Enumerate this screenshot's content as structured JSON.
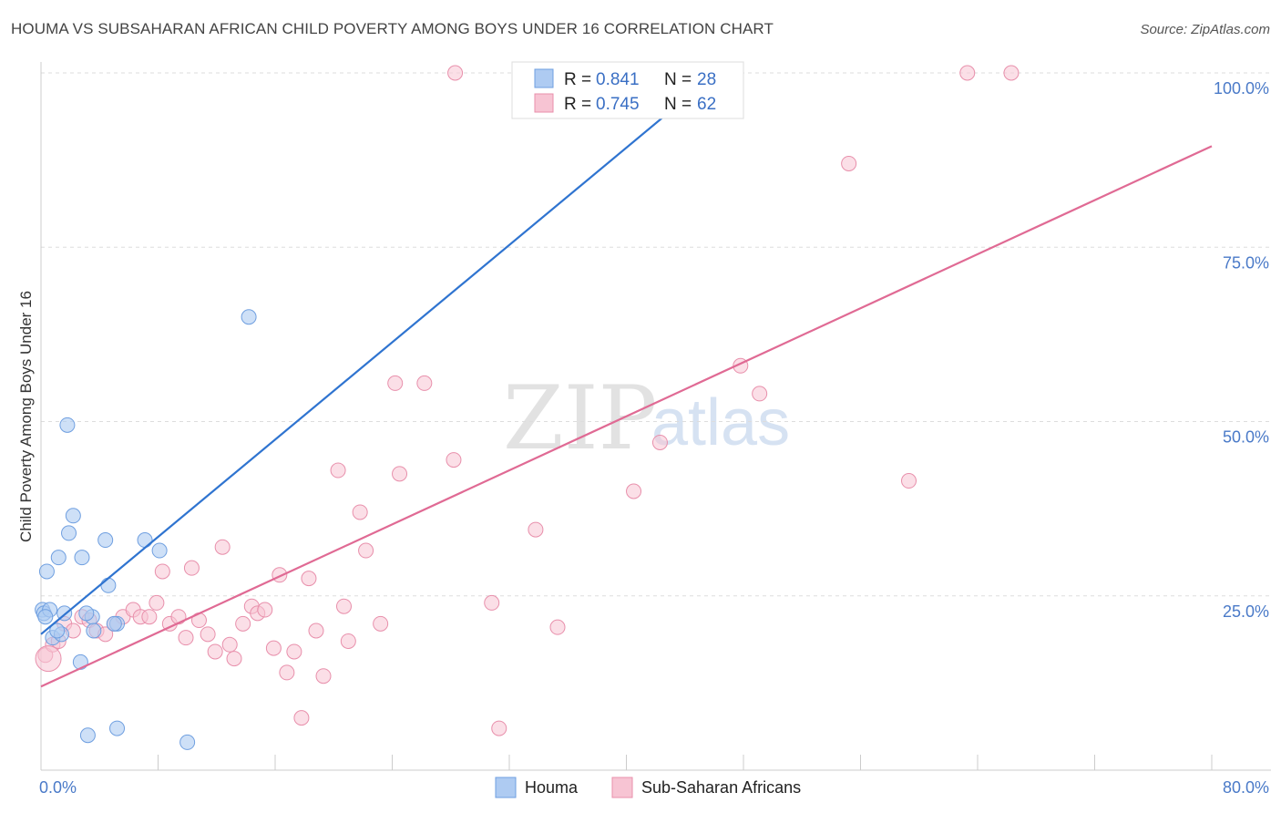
{
  "title": "HOUMA VS SUBSAHARAN AFRICAN CHILD POVERTY AMONG BOYS UNDER 16 CORRELATION CHART",
  "source": "Source: ZipAtlas.com",
  "watermark": {
    "part1": "ZIP",
    "part2": "atlas"
  },
  "legend_top": {
    "r_label": "R =",
    "n_label": "N =",
    "rows": [
      {
        "r": "0.841",
        "n": "28"
      },
      {
        "r": "0.745",
        "n": "62"
      }
    ]
  },
  "legend_bottom": {
    "houma": "Houma",
    "subsaharan": "Sub-Saharan Africans"
  },
  "axis": {
    "ylabel": "Child Poverty Among Boys Under 16",
    "x_min_label": "0.0%",
    "x_max_label": "80.0%"
  },
  "colors": {
    "houma_fill": "#aecbf2",
    "houma_stroke": "#6f9fe0",
    "houma_line": "#2f74d0",
    "sub_fill": "#f7c4d3",
    "sub_stroke": "#e88fab",
    "sub_line": "#e06a94",
    "tick": "#4a7ac8",
    "grid": "#dddddd"
  },
  "chart_data": {
    "type": "scatter",
    "title": "HOUMA VS SUBSAHARAN AFRICAN CHILD POVERTY AMONG BOYS UNDER 16 CORRELATION CHART",
    "xlabel": "",
    "ylabel": "Child Poverty Among Boys Under 16",
    "xlim": [
      0,
      80
    ],
    "ylim": [
      0,
      104
    ],
    "y_ticks": [
      {
        "value": 25,
        "label": "25.0%"
      },
      {
        "value": 50,
        "label": "50.0%"
      },
      {
        "value": 75,
        "label": "75.0%"
      },
      {
        "value": 100,
        "label": "100.0%"
      }
    ],
    "x_tick_labels": [
      "0.0%",
      "80.0%"
    ],
    "grid": true,
    "series": [
      {
        "name": "Houma",
        "r": 0.841,
        "n": 28,
        "trend": [
          [
            0,
            19.5
          ],
          [
            45,
            98
          ]
        ],
        "points": [
          [
            0.1,
            23.0
          ],
          [
            0.2,
            22.5
          ],
          [
            0.4,
            28.5
          ],
          [
            0.6,
            23.0
          ],
          [
            0.8,
            19.0
          ],
          [
            1.2,
            30.5
          ],
          [
            1.4,
            19.5
          ],
          [
            1.6,
            22.5
          ],
          [
            1.8,
            49.5
          ],
          [
            1.9,
            34.0
          ],
          [
            2.2,
            36.5
          ],
          [
            2.7,
            15.5
          ],
          [
            2.8,
            30.5
          ],
          [
            3.2,
            5.0
          ],
          [
            3.5,
            22.0
          ],
          [
            3.6,
            20.0
          ],
          [
            4.4,
            33.0
          ],
          [
            4.6,
            26.5
          ],
          [
            5.2,
            6.0
          ],
          [
            5.2,
            21.0
          ],
          [
            7.1,
            33.0
          ],
          [
            8.1,
            31.5
          ],
          [
            10.0,
            4.0
          ],
          [
            14.2,
            65.0
          ],
          [
            0.3,
            22.0
          ],
          [
            1.1,
            20.0
          ],
          [
            3.1,
            22.5
          ],
          [
            5.0,
            21.0
          ]
        ]
      },
      {
        "name": "Sub-Saharan Africans",
        "r": 0.745,
        "n": 62,
        "trend": [
          [
            0,
            12
          ],
          [
            80,
            89.5
          ]
        ],
        "points": [
          [
            0.3,
            16.5
          ],
          [
            0.8,
            18.0
          ],
          [
            1.2,
            18.5
          ],
          [
            1.6,
            21.0
          ],
          [
            2.2,
            20.0
          ],
          [
            2.8,
            22.0
          ],
          [
            3.3,
            21.5
          ],
          [
            3.8,
            20.0
          ],
          [
            4.4,
            19.5
          ],
          [
            5.0,
            21.0
          ],
          [
            5.6,
            22.0
          ],
          [
            6.3,
            23.0
          ],
          [
            6.8,
            22.0
          ],
          [
            7.4,
            22.0
          ],
          [
            7.9,
            24.0
          ],
          [
            8.3,
            28.5
          ],
          [
            8.8,
            21.0
          ],
          [
            9.4,
            22.0
          ],
          [
            9.9,
            19.0
          ],
          [
            10.3,
            29.0
          ],
          [
            10.8,
            21.5
          ],
          [
            11.4,
            19.5
          ],
          [
            11.9,
            17.0
          ],
          [
            12.4,
            32.0
          ],
          [
            12.9,
            18.0
          ],
          [
            13.2,
            16.0
          ],
          [
            13.8,
            21.0
          ],
          [
            14.4,
            23.5
          ],
          [
            14.8,
            22.5
          ],
          [
            15.3,
            23.0
          ],
          [
            15.9,
            17.5
          ],
          [
            16.3,
            28.0
          ],
          [
            16.8,
            14.0
          ],
          [
            17.3,
            17.0
          ],
          [
            17.8,
            7.5
          ],
          [
            18.3,
            27.5
          ],
          [
            18.8,
            20.0
          ],
          [
            19.3,
            13.5
          ],
          [
            20.3,
            43.0
          ],
          [
            20.7,
            23.5
          ],
          [
            21.0,
            18.5
          ],
          [
            21.8,
            37.0
          ],
          [
            22.2,
            31.5
          ],
          [
            23.2,
            21.0
          ],
          [
            24.2,
            55.5
          ],
          [
            24.5,
            42.5
          ],
          [
            26.2,
            55.5
          ],
          [
            28.2,
            44.5
          ],
          [
            28.3,
            100.0
          ],
          [
            30.8,
            24.0
          ],
          [
            31.3,
            6.0
          ],
          [
            33.8,
            34.5
          ],
          [
            35.3,
            20.5
          ],
          [
            40.5,
            40.0
          ],
          [
            42.3,
            47.0
          ],
          [
            47.8,
            58.0
          ],
          [
            49.1,
            54.0
          ],
          [
            55.2,
            87.0
          ],
          [
            59.3,
            41.5
          ],
          [
            63.3,
            100.0
          ],
          [
            66.3,
            100.0
          ],
          [
            0.5,
            16.0
          ]
        ]
      }
    ]
  }
}
